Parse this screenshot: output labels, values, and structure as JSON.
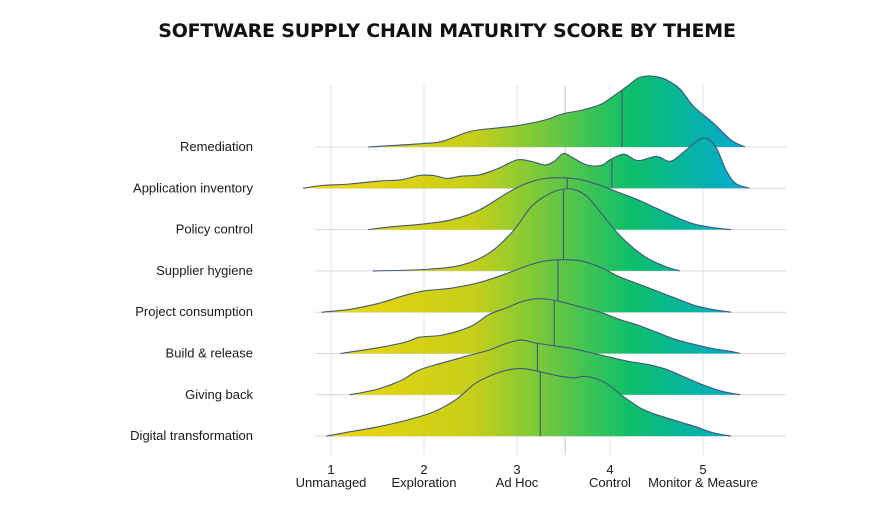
{
  "chart_data": {
    "type": "ridgeline",
    "title": "SOFTWARE SUPPLY CHAIN MATURITY SCORE BY THEME",
    "xlabel": "",
    "ylabel": "",
    "xlim": [
      0.4,
      5.9
    ],
    "x_ticks": [
      {
        "value": 1,
        "number": "1",
        "label": "Unmanaged"
      },
      {
        "value": 2,
        "number": "2",
        "label": "Exploration"
      },
      {
        "value": 3,
        "number": "3",
        "label": "Ad Hoc"
      },
      {
        "value": 4,
        "number": "4",
        "label": "Control"
      },
      {
        "value": 5,
        "number": "5",
        "label": "Monitor & Measure"
      }
    ],
    "overall_median_line": 3.52,
    "grid": true,
    "color_scale": [
      "#f6d60a",
      "#c6cf19",
      "#0cbf6a",
      "#00a6e4"
    ],
    "series": [
      {
        "name": "Remediation",
        "median": 4.13,
        "density": [
          [
            1.4,
            0.0
          ],
          [
            2.0,
            0.05
          ],
          [
            2.2,
            0.08
          ],
          [
            2.5,
            0.22
          ],
          [
            2.8,
            0.27
          ],
          [
            3.0,
            0.3
          ],
          [
            3.3,
            0.38
          ],
          [
            3.5,
            0.47
          ],
          [
            3.7,
            0.52
          ],
          [
            3.9,
            0.6
          ],
          [
            4.05,
            0.73
          ],
          [
            4.2,
            0.87
          ],
          [
            4.3,
            0.97
          ],
          [
            4.4,
            1.0
          ],
          [
            4.5,
            0.99
          ],
          [
            4.6,
            0.95
          ],
          [
            4.75,
            0.82
          ],
          [
            4.9,
            0.57
          ],
          [
            5.1,
            0.35
          ],
          [
            5.3,
            0.1
          ],
          [
            5.45,
            0.0
          ]
        ]
      },
      {
        "name": "Application inventory",
        "median": 4.02,
        "density": [
          [
            0.7,
            0.0
          ],
          [
            0.9,
            0.04
          ],
          [
            1.2,
            0.06
          ],
          [
            1.5,
            0.1
          ],
          [
            1.75,
            0.12
          ],
          [
            1.95,
            0.18
          ],
          [
            2.1,
            0.18
          ],
          [
            2.25,
            0.14
          ],
          [
            2.4,
            0.17
          ],
          [
            2.6,
            0.19
          ],
          [
            2.8,
            0.28
          ],
          [
            3.0,
            0.4
          ],
          [
            3.15,
            0.38
          ],
          [
            3.3,
            0.33
          ],
          [
            3.4,
            0.38
          ],
          [
            3.5,
            0.49
          ],
          [
            3.6,
            0.43
          ],
          [
            3.75,
            0.33
          ],
          [
            3.9,
            0.32
          ],
          [
            4.0,
            0.4
          ],
          [
            4.15,
            0.48
          ],
          [
            4.3,
            0.39
          ],
          [
            4.5,
            0.45
          ],
          [
            4.65,
            0.38
          ],
          [
            4.8,
            0.52
          ],
          [
            4.95,
            0.68
          ],
          [
            5.05,
            0.7
          ],
          [
            5.15,
            0.55
          ],
          [
            5.25,
            0.25
          ],
          [
            5.35,
            0.07
          ],
          [
            5.5,
            0.0
          ]
        ]
      },
      {
        "name": "Policy control",
        "median": 3.54,
        "density": [
          [
            1.4,
            0.0
          ],
          [
            1.65,
            0.04
          ],
          [
            2.0,
            0.08
          ],
          [
            2.3,
            0.14
          ],
          [
            2.6,
            0.28
          ],
          [
            2.9,
            0.52
          ],
          [
            3.1,
            0.65
          ],
          [
            3.3,
            0.72
          ],
          [
            3.5,
            0.73
          ],
          [
            3.7,
            0.7
          ],
          [
            3.9,
            0.62
          ],
          [
            4.1,
            0.52
          ],
          [
            4.3,
            0.42
          ],
          [
            4.5,
            0.3
          ],
          [
            4.7,
            0.18
          ],
          [
            4.9,
            0.08
          ],
          [
            5.1,
            0.03
          ],
          [
            5.3,
            0.0
          ]
        ]
      },
      {
        "name": "Supplier hygiene",
        "median": 3.5,
        "density": [
          [
            1.45,
            0.0
          ],
          [
            2.0,
            0.02
          ],
          [
            2.4,
            0.08
          ],
          [
            2.7,
            0.25
          ],
          [
            2.95,
            0.55
          ],
          [
            3.15,
            0.9
          ],
          [
            3.3,
            1.05
          ],
          [
            3.45,
            1.14
          ],
          [
            3.6,
            1.15
          ],
          [
            3.75,
            1.05
          ],
          [
            3.9,
            0.82
          ],
          [
            4.05,
            0.58
          ],
          [
            4.2,
            0.38
          ],
          [
            4.4,
            0.18
          ],
          [
            4.6,
            0.06
          ],
          [
            4.75,
            0.0
          ]
        ]
      },
      {
        "name": "Project consumption",
        "median": 3.44,
        "density": [
          [
            0.9,
            0.0
          ],
          [
            1.2,
            0.04
          ],
          [
            1.5,
            0.12
          ],
          [
            1.8,
            0.24
          ],
          [
            2.0,
            0.3
          ],
          [
            2.3,
            0.34
          ],
          [
            2.6,
            0.42
          ],
          [
            2.9,
            0.55
          ],
          [
            3.1,
            0.65
          ],
          [
            3.3,
            0.72
          ],
          [
            3.5,
            0.74
          ],
          [
            3.7,
            0.72
          ],
          [
            3.9,
            0.63
          ],
          [
            4.1,
            0.5
          ],
          [
            4.3,
            0.4
          ],
          [
            4.5,
            0.3
          ],
          [
            4.7,
            0.2
          ],
          [
            4.9,
            0.1
          ],
          [
            5.1,
            0.04
          ],
          [
            5.3,
            0.0
          ]
        ]
      },
      {
        "name": "Build & release",
        "median": 3.4,
        "density": [
          [
            1.1,
            0.0
          ],
          [
            1.5,
            0.08
          ],
          [
            1.8,
            0.16
          ],
          [
            1.95,
            0.23
          ],
          [
            2.2,
            0.26
          ],
          [
            2.5,
            0.38
          ],
          [
            2.7,
            0.55
          ],
          [
            2.9,
            0.65
          ],
          [
            3.05,
            0.73
          ],
          [
            3.2,
            0.77
          ],
          [
            3.35,
            0.76
          ],
          [
            3.5,
            0.72
          ],
          [
            3.7,
            0.65
          ],
          [
            3.9,
            0.58
          ],
          [
            4.1,
            0.48
          ],
          [
            4.3,
            0.4
          ],
          [
            4.5,
            0.3
          ],
          [
            4.7,
            0.2
          ],
          [
            4.9,
            0.13
          ],
          [
            5.1,
            0.07
          ],
          [
            5.3,
            0.03
          ],
          [
            5.4,
            0.0
          ]
        ]
      },
      {
        "name": "Giving back",
        "median": 3.22,
        "density": [
          [
            1.2,
            0.0
          ],
          [
            1.5,
            0.08
          ],
          [
            1.75,
            0.2
          ],
          [
            1.95,
            0.35
          ],
          [
            2.2,
            0.45
          ],
          [
            2.5,
            0.56
          ],
          [
            2.7,
            0.63
          ],
          [
            2.9,
            0.73
          ],
          [
            3.05,
            0.77
          ],
          [
            3.2,
            0.73
          ],
          [
            3.4,
            0.69
          ],
          [
            3.6,
            0.65
          ],
          [
            3.8,
            0.59
          ],
          [
            4.0,
            0.53
          ],
          [
            4.2,
            0.47
          ],
          [
            4.4,
            0.43
          ],
          [
            4.6,
            0.36
          ],
          [
            4.8,
            0.25
          ],
          [
            5.0,
            0.14
          ],
          [
            5.2,
            0.05
          ],
          [
            5.4,
            0.0
          ]
        ]
      },
      {
        "name": "Digital transformation",
        "median": 3.25,
        "density": [
          [
            0.95,
            0.0
          ],
          [
            1.2,
            0.06
          ],
          [
            1.5,
            0.13
          ],
          [
            1.8,
            0.22
          ],
          [
            2.1,
            0.34
          ],
          [
            2.35,
            0.52
          ],
          [
            2.55,
            0.74
          ],
          [
            2.75,
            0.87
          ],
          [
            2.9,
            0.93
          ],
          [
            3.05,
            0.95
          ],
          [
            3.2,
            0.92
          ],
          [
            3.4,
            0.86
          ],
          [
            3.6,
            0.82
          ],
          [
            3.75,
            0.84
          ],
          [
            3.95,
            0.75
          ],
          [
            4.15,
            0.55
          ],
          [
            4.35,
            0.38
          ],
          [
            4.55,
            0.28
          ],
          [
            4.75,
            0.2
          ],
          [
            4.95,
            0.12
          ],
          [
            5.1,
            0.05
          ],
          [
            5.3,
            0.0
          ]
        ]
      }
    ]
  }
}
